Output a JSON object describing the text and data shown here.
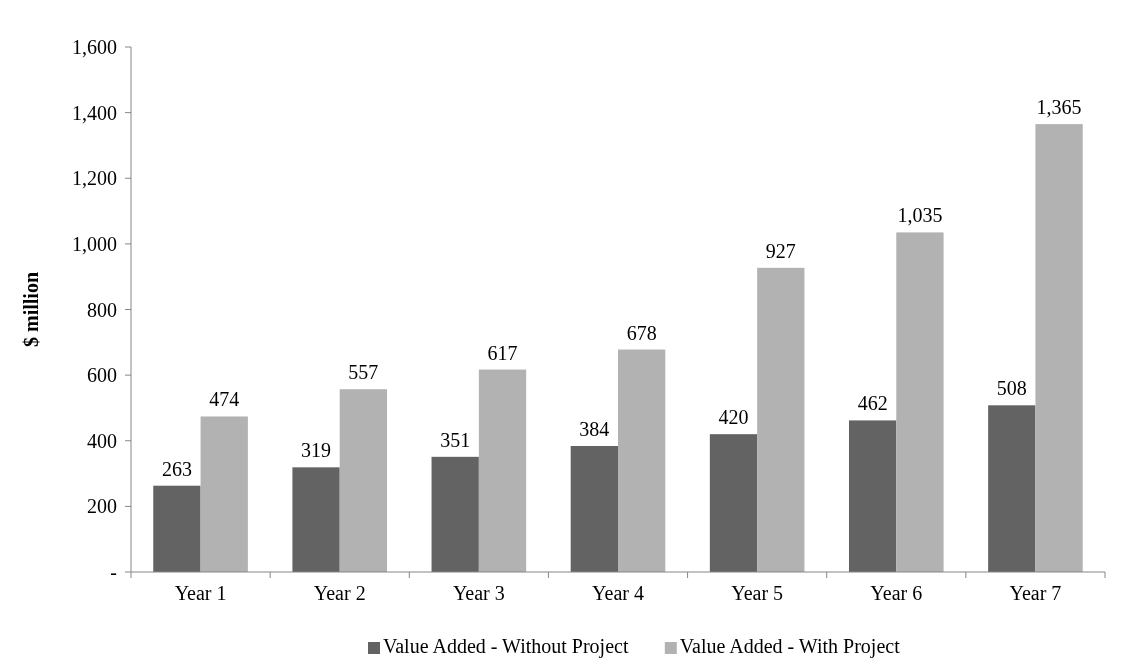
{
  "chart_data": {
    "type": "bar",
    "ylabel": "$ million",
    "categories": [
      "Year 1",
      "Year 2",
      "Year 3",
      "Year 4",
      "Year 5",
      "Year 6",
      "Year 7"
    ],
    "series": [
      {
        "name": "Value Added - Without Project",
        "color": "#636363",
        "values": [
          263,
          319,
          351,
          384,
          420,
          462,
          508
        ],
        "value_labels": [
          "263",
          "319",
          "351",
          "384",
          "420",
          "462",
          "508"
        ]
      },
      {
        "name": "Value Added - With Project",
        "color": "#b2b2b2",
        "values": [
          474,
          557,
          617,
          678,
          927,
          1035,
          1365
        ],
        "value_labels": [
          "474",
          "557",
          "617",
          "678",
          "927",
          "1,035",
          "1,365"
        ]
      }
    ],
    "ylim": [
      0,
      1600
    ],
    "yticks": [
      {
        "value": 0,
        "label": "-"
      },
      {
        "value": 200,
        "label": "200"
      },
      {
        "value": 400,
        "label": "400"
      },
      {
        "value": 600,
        "label": "600"
      },
      {
        "value": 800,
        "label": "800"
      },
      {
        "value": 1000,
        "label": "1,000"
      },
      {
        "value": 1200,
        "label": "1,200"
      },
      {
        "value": 1400,
        "label": "1,400"
      },
      {
        "value": 1600,
        "label": "1,600"
      }
    ],
    "grid": false,
    "legend": "bottom"
  }
}
